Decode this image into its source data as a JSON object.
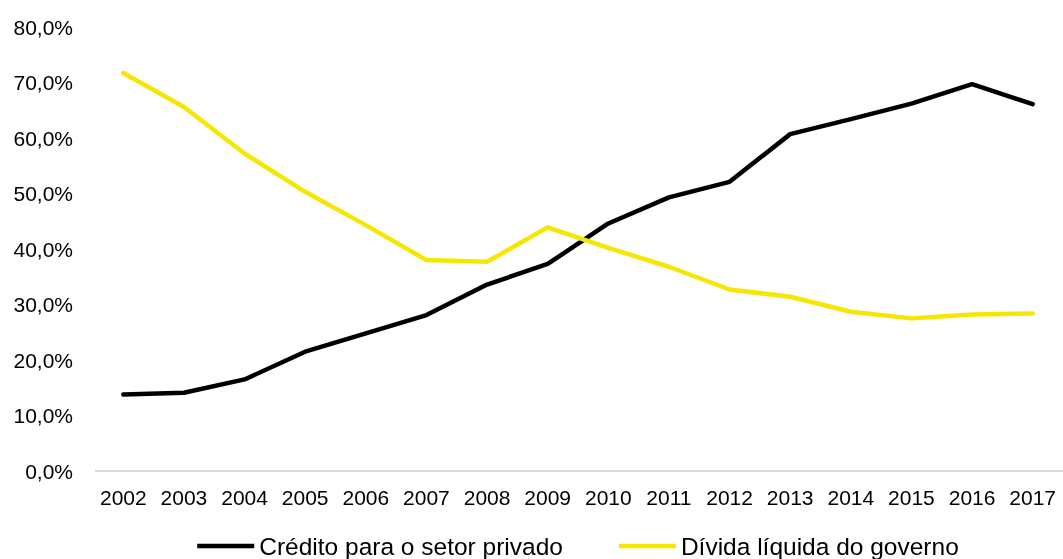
{
  "chart_data": {
    "type": "line",
    "categories": [
      "2002",
      "2003",
      "2004",
      "2005",
      "2006",
      "2007",
      "2008",
      "2009",
      "2010",
      "2011",
      "2012",
      "2013",
      "2014",
      "2015",
      "2016",
      "2017"
    ],
    "series": [
      {
        "name": "Crédito para o setor privado",
        "color": "#000000",
        "values": [
          13.8,
          14.1,
          16.5,
          21.5,
          24.8,
          28.1,
          33.6,
          37.3,
          44.6,
          49.3,
          52.1,
          60.7,
          63.4,
          66.2,
          69.7,
          66.1
        ]
      },
      {
        "name": "Dívida líquida do governo",
        "color": "#f7e600",
        "values": [
          71.7,
          65.6,
          57.2,
          50.3,
          44.3,
          38.0,
          37.7,
          43.9,
          40.2,
          36.8,
          32.7,
          31.4,
          28.7,
          27.5,
          28.2,
          28.4
        ]
      }
    ],
    "ylim": [
      0,
      80
    ],
    "yticks": [
      {
        "value": 0,
        "label": "0,0%"
      },
      {
        "value": 10,
        "label": "10,0%"
      },
      {
        "value": 20,
        "label": "20,0%"
      },
      {
        "value": 30,
        "label": "30,0%"
      },
      {
        "value": 40,
        "label": "40,0%"
      },
      {
        "value": 50,
        "label": "50,0%"
      },
      {
        "value": 60,
        "label": "60,0%"
      },
      {
        "value": 70,
        "label": "70,0%"
      },
      {
        "value": 80,
        "label": "80,0%"
      }
    ],
    "legend": "bottom"
  }
}
